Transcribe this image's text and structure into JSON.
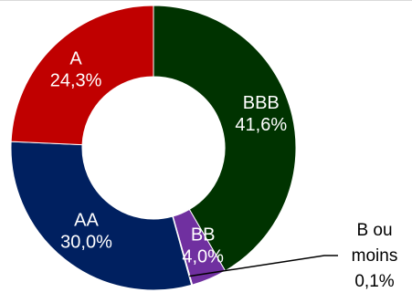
{
  "chart_data": {
    "type": "pie",
    "variant": "donut",
    "categories": [
      "BBB",
      "BB",
      "B ou moins",
      "AA",
      "A"
    ],
    "values": [
      41.6,
      4.0,
      0.1,
      30.0,
      24.3
    ],
    "value_labels": [
      "41,6%",
      "4,0%",
      "0,1%",
      "30,0%",
      "24,3%"
    ],
    "colors": [
      "#003300",
      "#7030a0",
      "#e46c0a",
      "#002060",
      "#c00000"
    ],
    "label_colors": [
      "#ffffff",
      "#ffffff",
      "#000000",
      "#ffffff",
      "#ffffff"
    ],
    "title": "",
    "legend": "none",
    "slice_label_style": "inside, except B ou moins outside with leader line",
    "start_angle_deg": -90
  }
}
